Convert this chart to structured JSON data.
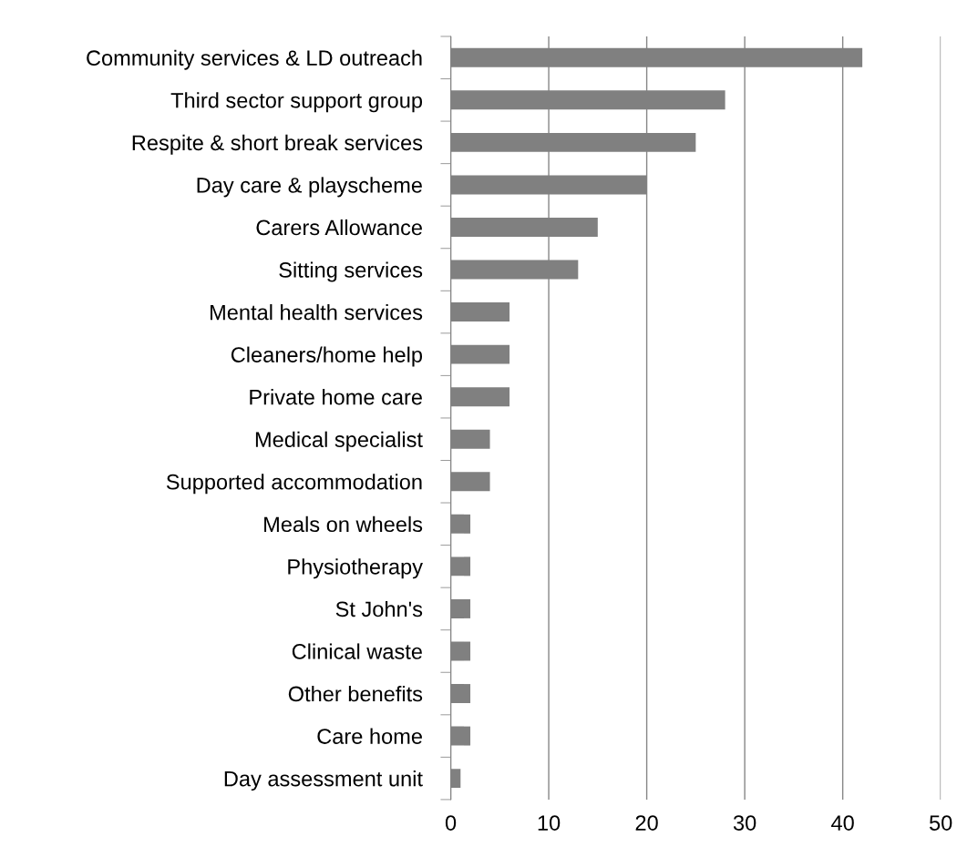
{
  "chart_data": {
    "type": "bar",
    "orientation": "horizontal",
    "categories": [
      "Community services & LD outreach",
      "Third sector support group",
      "Respite & short break services",
      "Day care & playscheme",
      "Carers Allowance",
      "Sitting services",
      "Mental health services",
      "Cleaners/home help",
      "Private home care",
      "Medical specialist",
      "Supported accommodation",
      "Meals on wheels",
      "Physiotherapy",
      "St John's",
      "Clinical waste",
      "Other benefits",
      "Care home",
      "Day assessment unit"
    ],
    "values": [
      42,
      28,
      25,
      20,
      15,
      13,
      6,
      6,
      6,
      4,
      4,
      2,
      2,
      2,
      2,
      2,
      2,
      1
    ],
    "color": "#808080",
    "xlim": [
      0,
      50
    ],
    "xticks": [
      0,
      10,
      20,
      30,
      40,
      50
    ],
    "grid": "x"
  }
}
